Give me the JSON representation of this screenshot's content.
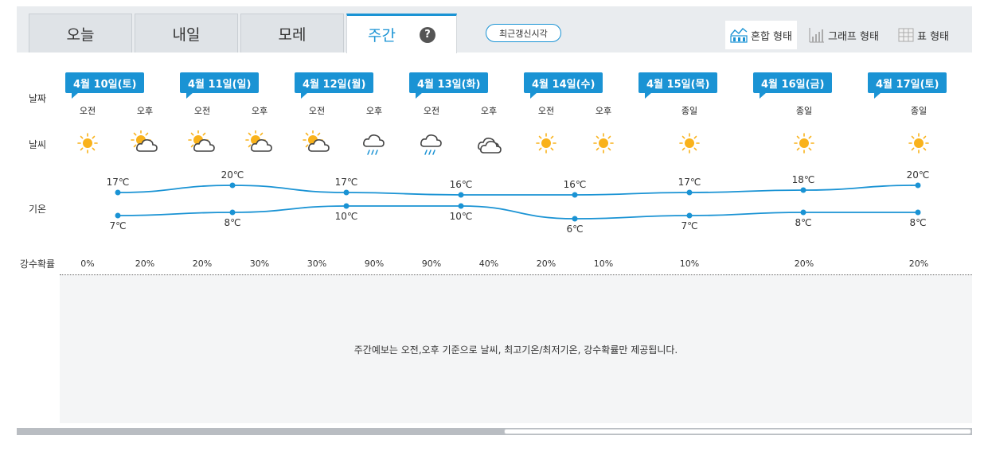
{
  "tabs": [
    {
      "label": "오늘"
    },
    {
      "label": "내일"
    },
    {
      "label": "모레"
    },
    {
      "label": "주간"
    }
  ],
  "help_symbol": "?",
  "refresh_label": "최근갱신시각",
  "view_modes": [
    {
      "label": "혼합 형태",
      "icon": "mixed-chart-icon"
    },
    {
      "label": "그래프 형태",
      "icon": "bar-graph-icon"
    },
    {
      "label": "표 형태",
      "icon": "table-icon"
    }
  ],
  "row_labels": {
    "date": "날짜",
    "weather": "날씨",
    "temperature": "기온",
    "precip": "강수확률"
  },
  "days": [
    {
      "label": "4월 10일(토)"
    },
    {
      "label": "4월 11일(일)"
    },
    {
      "label": "4월 12일(월)"
    },
    {
      "label": "4월 13일(화)"
    },
    {
      "label": "4월 14일(수)"
    },
    {
      "label": "4월 15일(목)"
    },
    {
      "label": "4월 16일(금)"
    },
    {
      "label": "4월 17일(토)"
    }
  ],
  "periods": [
    {
      "label": "오전",
      "icon": "sunny"
    },
    {
      "label": "오후",
      "icon": "partly-cloudy"
    },
    {
      "label": "오전",
      "icon": "partly-cloudy"
    },
    {
      "label": "오후",
      "icon": "partly-cloudy"
    },
    {
      "label": "오전",
      "icon": "partly-cloudy"
    },
    {
      "label": "오후",
      "icon": "rain"
    },
    {
      "label": "오전",
      "icon": "rain"
    },
    {
      "label": "오후",
      "icon": "cloudy"
    },
    {
      "label": "오전",
      "icon": "sunny"
    },
    {
      "label": "오후",
      "icon": "sunny"
    },
    {
      "label": "종일",
      "icon": "sunny"
    },
    {
      "label": "종일",
      "icon": "sunny"
    },
    {
      "label": "종일",
      "icon": "sunny"
    }
  ],
  "precipitation": [
    "0%",
    "20%",
    "20%",
    "30%",
    "30%",
    "90%",
    "90%",
    "40%",
    "20%",
    "10%",
    "10%",
    "20%",
    "20%"
  ],
  "temperatures": {
    "high": [
      "17℃",
      "20℃",
      "17℃",
      "16℃",
      "16℃",
      "17℃",
      "18℃",
      "20℃"
    ],
    "low": [
      "7℃",
      "8℃",
      "10℃",
      "10℃",
      "6℃",
      "7℃",
      "8℃",
      "8℃"
    ]
  },
  "chart_data": {
    "type": "line",
    "x": [
      "4월 10일(토)",
      "4월 11일(일)",
      "4월 12일(월)",
      "4월 13일(화)",
      "4월 14일(수)",
      "4월 15일(목)",
      "4월 16일(금)",
      "4월 17일(토)"
    ],
    "series": [
      {
        "values": [
          17,
          20,
          17,
          16,
          16,
          17,
          18,
          20
        ]
      },
      {
        "values": [
          7,
          8,
          10,
          10,
          6,
          7,
          8,
          8
        ]
      }
    ],
    "unit": "℃"
  },
  "notice": "주간예보는 오전,오후 기준으로 날씨, 최고기온/최저기온, 강수확률만 제공됩니다.",
  "colors": {
    "accent": "#1a93d4",
    "sun": "#f9b21b",
    "rain_drop": "#1a93d4"
  }
}
